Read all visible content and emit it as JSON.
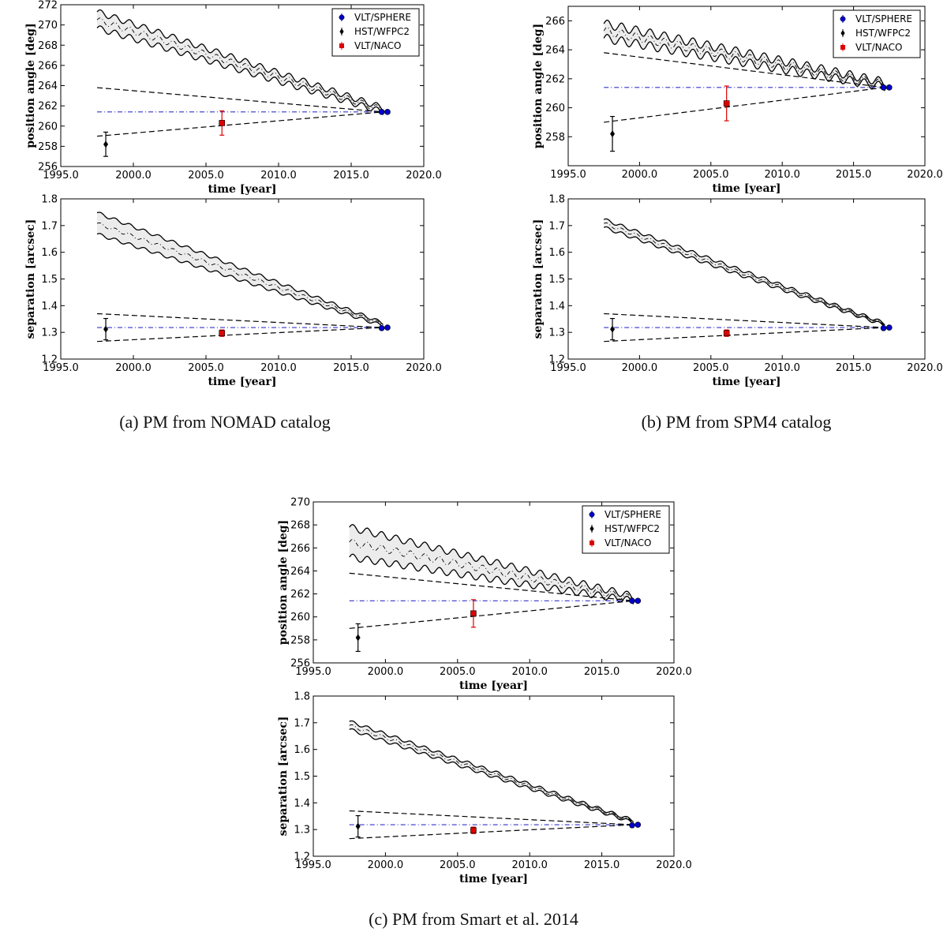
{
  "figure": {
    "captions": {
      "a": "(a) PM from NOMAD catalog",
      "b": "(b) PM from SPM4 catalog",
      "c": "(c) PM from Smart et al. 2014"
    }
  },
  "legend": [
    {
      "label": "VLT/SPHERE",
      "color": "#0000cc",
      "marker": "circle"
    },
    {
      "label": "HST/WFPC2",
      "color": "#000000",
      "marker": "diamond"
    },
    {
      "label": "VLT/NACO",
      "color": "#dd0000",
      "marker": "square"
    }
  ],
  "colors": {
    "sphere": "#0000cc",
    "hst": "#000000",
    "naco": "#dd0000",
    "track_fill": "#ececec",
    "reference_line": "#3333cc"
  },
  "chart_data": [
    {
      "id": "a-top",
      "panel": "a",
      "type": "line",
      "xlabel": "time [year]",
      "ylabel": "position angle [deg]",
      "xlim": [
        1995,
        2020
      ],
      "ylim": [
        256,
        272
      ],
      "xticks": [
        1995,
        2000,
        2005,
        2010,
        2015,
        2020
      ],
      "xtick_labels": [
        "1995.0",
        "2000.0",
        "2005.0",
        "2010.0",
        "2015.0",
        "2020.0"
      ],
      "yticks": [
        256,
        258,
        260,
        262,
        264,
        266,
        268,
        270,
        272
      ],
      "ytick_labels": [
        "256",
        "258",
        "260",
        "262",
        "264",
        "266",
        "268",
        "270",
        "272"
      ],
      "show_legend": true,
      "background_track": {
        "x_start": 1997.5,
        "x_end": 2017.2,
        "center_start": 270.5,
        "center_end": 261.6,
        "half_width_start": 0.8,
        "half_width_end": 0.2,
        "wiggle_amplitude": 0.3,
        "wiggle_period_years": 1
      },
      "stationary_line": 261.4,
      "bound_lines": [
        {
          "x": [
            1997.5,
            2017.2
          ],
          "y": [
            263.8,
            261.4
          ]
        },
        {
          "x": [
            1997.5,
            2017.2
          ],
          "y": [
            259.0,
            261.4
          ]
        }
      ],
      "points": [
        {
          "instrument": "VLT/SPHERE",
          "x": 2017.1,
          "y": 261.4,
          "err": 0.1
        },
        {
          "instrument": "VLT/SPHERE",
          "x": 2017.5,
          "y": 261.4,
          "err": 0.1
        },
        {
          "instrument": "HST/WFPC2",
          "x": 1998.1,
          "y": 258.2,
          "err": 1.2
        },
        {
          "instrument": "VLT/NACO",
          "x": 2006.1,
          "y": 260.3,
          "err": 1.2
        }
      ]
    },
    {
      "id": "a-bottom",
      "panel": "a",
      "type": "line",
      "xlabel": "time [year]",
      "ylabel": "separation [arcsec]",
      "xlim": [
        1995,
        2020
      ],
      "ylim": [
        1.2,
        1.8
      ],
      "xticks": [
        1995,
        2000,
        2005,
        2010,
        2015,
        2020
      ],
      "xtick_labels": [
        "1995.0",
        "2000.0",
        "2005.0",
        "2010.0",
        "2015.0",
        "2020.0"
      ],
      "yticks": [
        1.2,
        1.3,
        1.4,
        1.5,
        1.6,
        1.7,
        1.8
      ],
      "ytick_labels": [
        "1.2",
        "1.3",
        "1.4",
        "1.5",
        "1.6",
        "1.7",
        "1.8"
      ],
      "show_legend": false,
      "background_track": {
        "x_start": 1997.5,
        "x_end": 2017.2,
        "center_start": 1.708,
        "center_end": 1.33,
        "half_width_start": 0.04,
        "half_width_end": 0.005,
        "wiggle_amplitude": 0.006,
        "wiggle_period_years": 1
      },
      "stationary_line": 1.318,
      "bound_lines": [
        {
          "x": [
            1997.5,
            2017.2
          ],
          "y": [
            1.37,
            1.318
          ]
        },
        {
          "x": [
            1997.5,
            2017.2
          ],
          "y": [
            1.266,
            1.318
          ]
        }
      ],
      "points": [
        {
          "instrument": "VLT/SPHERE",
          "x": 2017.1,
          "y": 1.316,
          "err": 0.003
        },
        {
          "instrument": "VLT/SPHERE",
          "x": 2017.5,
          "y": 1.318,
          "err": 0.003
        },
        {
          "instrument": "HST/WFPC2",
          "x": 1998.1,
          "y": 1.312,
          "err": 0.04
        },
        {
          "instrument": "VLT/NACO",
          "x": 2006.1,
          "y": 1.297,
          "err": 0.012
        }
      ]
    },
    {
      "id": "b-top",
      "panel": "b",
      "type": "line",
      "xlabel": "time [year]",
      "ylabel": "position angle [deg]",
      "xlim": [
        1995,
        2020
      ],
      "ylim": [
        256,
        267
      ],
      "xticks": [
        1995,
        2000,
        2005,
        2010,
        2015,
        2020
      ],
      "xtick_labels": [
        "1995.0",
        "2000.0",
        "2005.0",
        "2010.0",
        "2015.0",
        "2020.0"
      ],
      "yticks": [
        258,
        260,
        262,
        264,
        266
      ],
      "ytick_labels": [
        "258",
        "260",
        "262",
        "264",
        "266"
      ],
      "show_legend": true,
      "background_track": {
        "x_start": 1997.5,
        "x_end": 2017.2,
        "center_start": 265.3,
        "center_end": 261.6,
        "half_width_start": 0.5,
        "half_width_end": 0.15,
        "wiggle_amplitude": 0.3,
        "wiggle_period_years": 1
      },
      "stationary_line": 261.4,
      "bound_lines": [
        {
          "x": [
            1997.5,
            2017.2
          ],
          "y": [
            263.8,
            261.4
          ]
        },
        {
          "x": [
            1997.5,
            2017.2
          ],
          "y": [
            259.0,
            261.4
          ]
        }
      ],
      "points": [
        {
          "instrument": "VLT/SPHERE",
          "x": 2017.1,
          "y": 261.4,
          "err": 0.1
        },
        {
          "instrument": "VLT/SPHERE",
          "x": 2017.5,
          "y": 261.4,
          "err": 0.1
        },
        {
          "instrument": "HST/WFPC2",
          "x": 1998.1,
          "y": 258.2,
          "err": 1.2
        },
        {
          "instrument": "VLT/NACO",
          "x": 2006.1,
          "y": 260.3,
          "err": 1.2
        }
      ]
    },
    {
      "id": "b-bottom",
      "panel": "b",
      "type": "line",
      "xlabel": "time [year]",
      "ylabel": "separation [arcsec]",
      "xlim": [
        1995,
        2020
      ],
      "ylim": [
        1.2,
        1.8
      ],
      "xticks": [
        1995,
        2000,
        2005,
        2010,
        2015,
        2020
      ],
      "xtick_labels": [
        "1995.0",
        "2000.0",
        "2005.0",
        "2010.0",
        "2015.0",
        "2020.0"
      ],
      "yticks": [
        1.2,
        1.3,
        1.4,
        1.5,
        1.6,
        1.7,
        1.8
      ],
      "ytick_labels": [
        "1.2",
        "1.3",
        "1.4",
        "1.5",
        "1.6",
        "1.7",
        "1.8"
      ],
      "show_legend": false,
      "background_track": {
        "x_start": 1997.5,
        "x_end": 2017.2,
        "center_start": 1.708,
        "center_end": 1.33,
        "half_width_start": 0.015,
        "half_width_end": 0.004,
        "wiggle_amplitude": 0.006,
        "wiggle_period_years": 1
      },
      "stationary_line": 1.318,
      "bound_lines": [
        {
          "x": [
            1997.5,
            2017.2
          ],
          "y": [
            1.37,
            1.318
          ]
        },
        {
          "x": [
            1997.5,
            2017.2
          ],
          "y": [
            1.266,
            1.318
          ]
        }
      ],
      "points": [
        {
          "instrument": "VLT/SPHERE",
          "x": 2017.1,
          "y": 1.316,
          "err": 0.003
        },
        {
          "instrument": "VLT/SPHERE",
          "x": 2017.5,
          "y": 1.318,
          "err": 0.003
        },
        {
          "instrument": "HST/WFPC2",
          "x": 1998.1,
          "y": 1.312,
          "err": 0.04
        },
        {
          "instrument": "VLT/NACO",
          "x": 2006.1,
          "y": 1.297,
          "err": 0.012
        }
      ]
    },
    {
      "id": "c-top",
      "panel": "c",
      "type": "line",
      "xlabel": "time [year]",
      "ylabel": "position angle [deg]",
      "xlim": [
        1995,
        2020
      ],
      "ylim": [
        256,
        270
      ],
      "xticks": [
        1995,
        2000,
        2005,
        2010,
        2015,
        2020
      ],
      "xtick_labels": [
        "1995.0",
        "2000.0",
        "2005.0",
        "2010.0",
        "2015.0",
        "2020.0"
      ],
      "yticks": [
        256,
        258,
        260,
        262,
        264,
        266,
        268,
        270
      ],
      "ytick_labels": [
        "256",
        "258",
        "260",
        "262",
        "264",
        "266",
        "268",
        "270"
      ],
      "show_legend": true,
      "background_track": {
        "x_start": 1997.5,
        "x_end": 2017.2,
        "center_start": 266.5,
        "center_end": 261.6,
        "half_width_start": 1.3,
        "half_width_end": 0.2,
        "wiggle_amplitude": 0.3,
        "wiggle_period_years": 1
      },
      "stationary_line": 261.4,
      "bound_lines": [
        {
          "x": [
            1997.5,
            2017.2
          ],
          "y": [
            263.8,
            261.4
          ]
        },
        {
          "x": [
            1997.5,
            2017.2
          ],
          "y": [
            259.0,
            261.4
          ]
        }
      ],
      "points": [
        {
          "instrument": "VLT/SPHERE",
          "x": 2017.1,
          "y": 261.4,
          "err": 0.1
        },
        {
          "instrument": "VLT/SPHERE",
          "x": 2017.5,
          "y": 261.4,
          "err": 0.1
        },
        {
          "instrument": "HST/WFPC2",
          "x": 1998.1,
          "y": 258.2,
          "err": 1.2
        },
        {
          "instrument": "VLT/NACO",
          "x": 2006.1,
          "y": 260.3,
          "err": 1.2
        }
      ]
    },
    {
      "id": "c-bottom",
      "panel": "c",
      "type": "line",
      "xlabel": "time [year]",
      "ylabel": "separation [arcsec]",
      "xlim": [
        1995,
        2020
      ],
      "ylim": [
        1.2,
        1.8
      ],
      "xticks": [
        1995,
        2000,
        2005,
        2010,
        2015,
        2020
      ],
      "xtick_labels": [
        "1995.0",
        "2000.0",
        "2005.0",
        "2010.0",
        "2015.0",
        "2020.0"
      ],
      "yticks": [
        1.2,
        1.3,
        1.4,
        1.5,
        1.6,
        1.7,
        1.8
      ],
      "ytick_labels": [
        "1.2",
        "1.3",
        "1.4",
        "1.5",
        "1.6",
        "1.7",
        "1.8"
      ],
      "show_legend": false,
      "background_track": {
        "x_start": 1997.5,
        "x_end": 2017.2,
        "center_start": 1.69,
        "center_end": 1.33,
        "half_width_start": 0.015,
        "half_width_end": 0.004,
        "wiggle_amplitude": 0.006,
        "wiggle_period_years": 1
      },
      "stationary_line": 1.318,
      "bound_lines": [
        {
          "x": [
            1997.5,
            2017.2
          ],
          "y": [
            1.37,
            1.318
          ]
        },
        {
          "x": [
            1997.5,
            2017.2
          ],
          "y": [
            1.266,
            1.318
          ]
        }
      ],
      "points": [
        {
          "instrument": "VLT/SPHERE",
          "x": 2017.1,
          "y": 1.316,
          "err": 0.003
        },
        {
          "instrument": "VLT/SPHERE",
          "x": 2017.5,
          "y": 1.318,
          "err": 0.003
        },
        {
          "instrument": "HST/WFPC2",
          "x": 1998.1,
          "y": 1.312,
          "err": 0.04
        },
        {
          "instrument": "VLT/NACO",
          "x": 2006.1,
          "y": 1.297,
          "err": 0.012
        }
      ]
    }
  ]
}
